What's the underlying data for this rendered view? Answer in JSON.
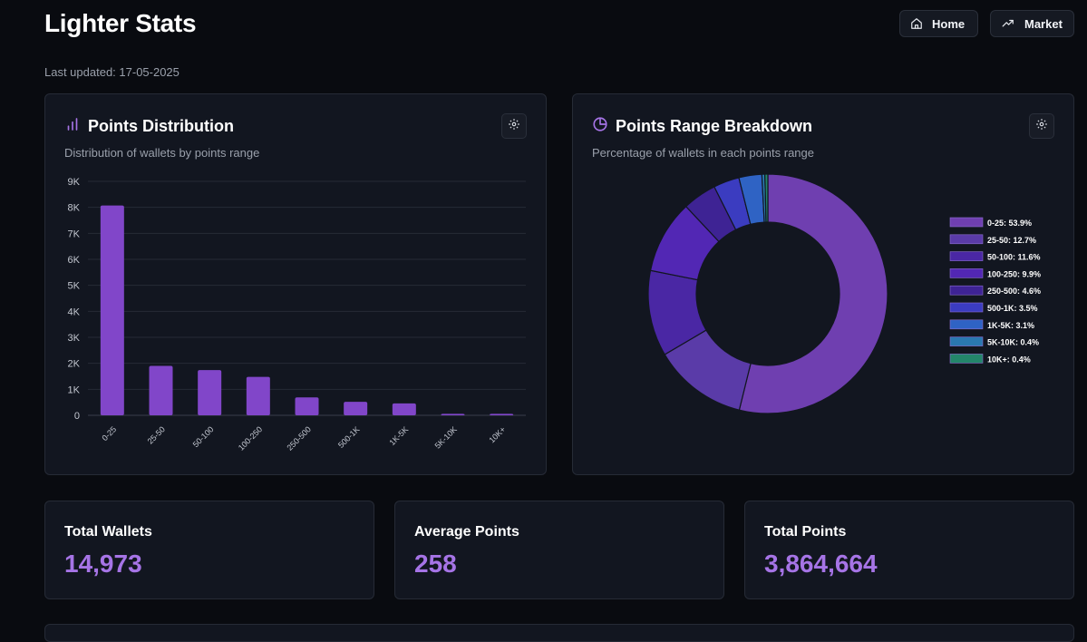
{
  "header": {
    "title": "Lighter Stats",
    "last_updated": "Last updated: 17-05-2025"
  },
  "nav": {
    "home_label": "Home",
    "market_label": "Market"
  },
  "distribution_card": {
    "title": "Points Distribution",
    "subtitle": "Distribution of wallets by points range"
  },
  "breakdown_card": {
    "title": "Points Range Breakdown",
    "subtitle": "Percentage of wallets in each points range"
  },
  "stats": {
    "total_wallets_label": "Total Wallets",
    "total_wallets_value": "14,973",
    "average_points_label": "Average Points",
    "average_points_value": "258",
    "total_points_label": "Total Points",
    "total_points_value": "3,864,664"
  },
  "colors": {
    "accent": "#a674e6",
    "bar": "#8146c9"
  },
  "chart_data": [
    {
      "type": "bar",
      "title": "Points Distribution",
      "categories": [
        "0-25",
        "25-50",
        "50-100",
        "100-250",
        "250-500",
        "500-1K",
        "1K-5K",
        "5K-10K",
        "10K+"
      ],
      "values": [
        8070,
        1900,
        1740,
        1480,
        690,
        520,
        460,
        55,
        55
      ],
      "y_ticks": [
        "0",
        "1K",
        "2K",
        "3K",
        "4K",
        "5K",
        "6K",
        "7K",
        "8K",
        "9K"
      ],
      "ylim": [
        0,
        9000
      ],
      "grid": true
    },
    {
      "type": "pie",
      "title": "Points Range Breakdown",
      "legend_position": "right",
      "slices": [
        {
          "label": "0-25: 53.9%",
          "value": 53.9,
          "color": "#6f3fb0"
        },
        {
          "label": "25-50: 12.7%",
          "value": 12.7,
          "color": "#5a3ba8"
        },
        {
          "label": "50-100: 11.6%",
          "value": 11.6,
          "color": "#4a27a4"
        },
        {
          "label": "100-250: 9.9%",
          "value": 9.9,
          "color": "#5227b4"
        },
        {
          "label": "250-500: 4.6%",
          "value": 4.6,
          "color": "#3e2394"
        },
        {
          "label": "500-1K: 3.5%",
          "value": 3.5,
          "color": "#3b3cc0"
        },
        {
          "label": "1K-5K: 3.1%",
          "value": 3.1,
          "color": "#2f63c4"
        },
        {
          "label": "5K-10K: 0.4%",
          "value": 0.4,
          "color": "#2a78b0"
        },
        {
          "label": "10K+: 0.4%",
          "value": 0.4,
          "color": "#23866a"
        }
      ]
    }
  ]
}
